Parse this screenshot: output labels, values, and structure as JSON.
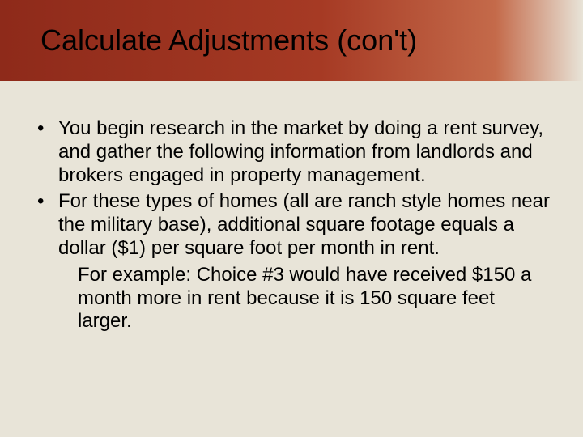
{
  "slide": {
    "title": "Calculate Adjustments (con't)",
    "bullets": [
      {
        "text": "You begin research in the market by doing a rent survey, and gather the following information from landlords and brokers engaged in property management."
      },
      {
        "text": "For these types of homes (all are ranch style homes near the military base), additional square footage equals a dollar ($1) per square foot per month in rent.",
        "sub": "For example: Choice #3 would have received $150 a month more in rent because it is 150 square feet larger."
      }
    ]
  },
  "styles": {
    "background_color": "#e8e4d8",
    "title_bar_gradient_start": "#8e2a1a",
    "title_bar_gradient_end": "#e8e4d8",
    "title_fontsize": 36,
    "body_fontsize": 24,
    "text_color": "#000000"
  }
}
